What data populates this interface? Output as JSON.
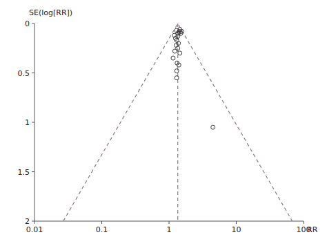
{
  "chart_data": {
    "type": "scatter",
    "xlabel": "RR",
    "ylabel": "SE(log[RR])",
    "log": "x",
    "grid": false,
    "xlim": [
      0.01,
      100
    ],
    "ylim": [
      2.0,
      0.0
    ],
    "xticks": [
      0.01,
      0.1,
      1,
      10,
      100
    ],
    "yticks": [
      0,
      0.5,
      1,
      1.5,
      2
    ],
    "series": [
      {
        "type": "scatter",
        "color": "#3a3a3a",
        "marker": "circle",
        "x": [
          1.3,
          1.45,
          1.2,
          1.55,
          1.35,
          1.25,
          1.4,
          1.5,
          1.35,
          1.42,
          1.3,
          1.38,
          1.28,
          1.22,
          1.35,
          1.45,
          1.15,
          1.32,
          1.3,
          1.4,
          1.3,
          4.5
        ],
        "values": [
          0.07,
          0.06,
          0.12,
          0.08,
          0.1,
          0.15,
          0.09,
          0.1,
          0.13,
          0.08,
          0.17,
          0.2,
          0.22,
          0.28,
          0.25,
          0.3,
          0.35,
          0.4,
          0.55,
          0.42,
          0.48,
          1.05
        ]
      },
      {
        "type": "line",
        "color": "#8b7b8b",
        "line_style": "dashed",
        "x": [
          0.026785,
          1.35,
          68.0406
        ],
        "values": [
          2,
          0,
          2
        ]
      },
      {
        "type": "line",
        "color": "#8b7b8b",
        "line_style": "dashed",
        "x": [
          1.35,
          1.35
        ],
        "values": [
          0,
          2
        ]
      }
    ]
  }
}
